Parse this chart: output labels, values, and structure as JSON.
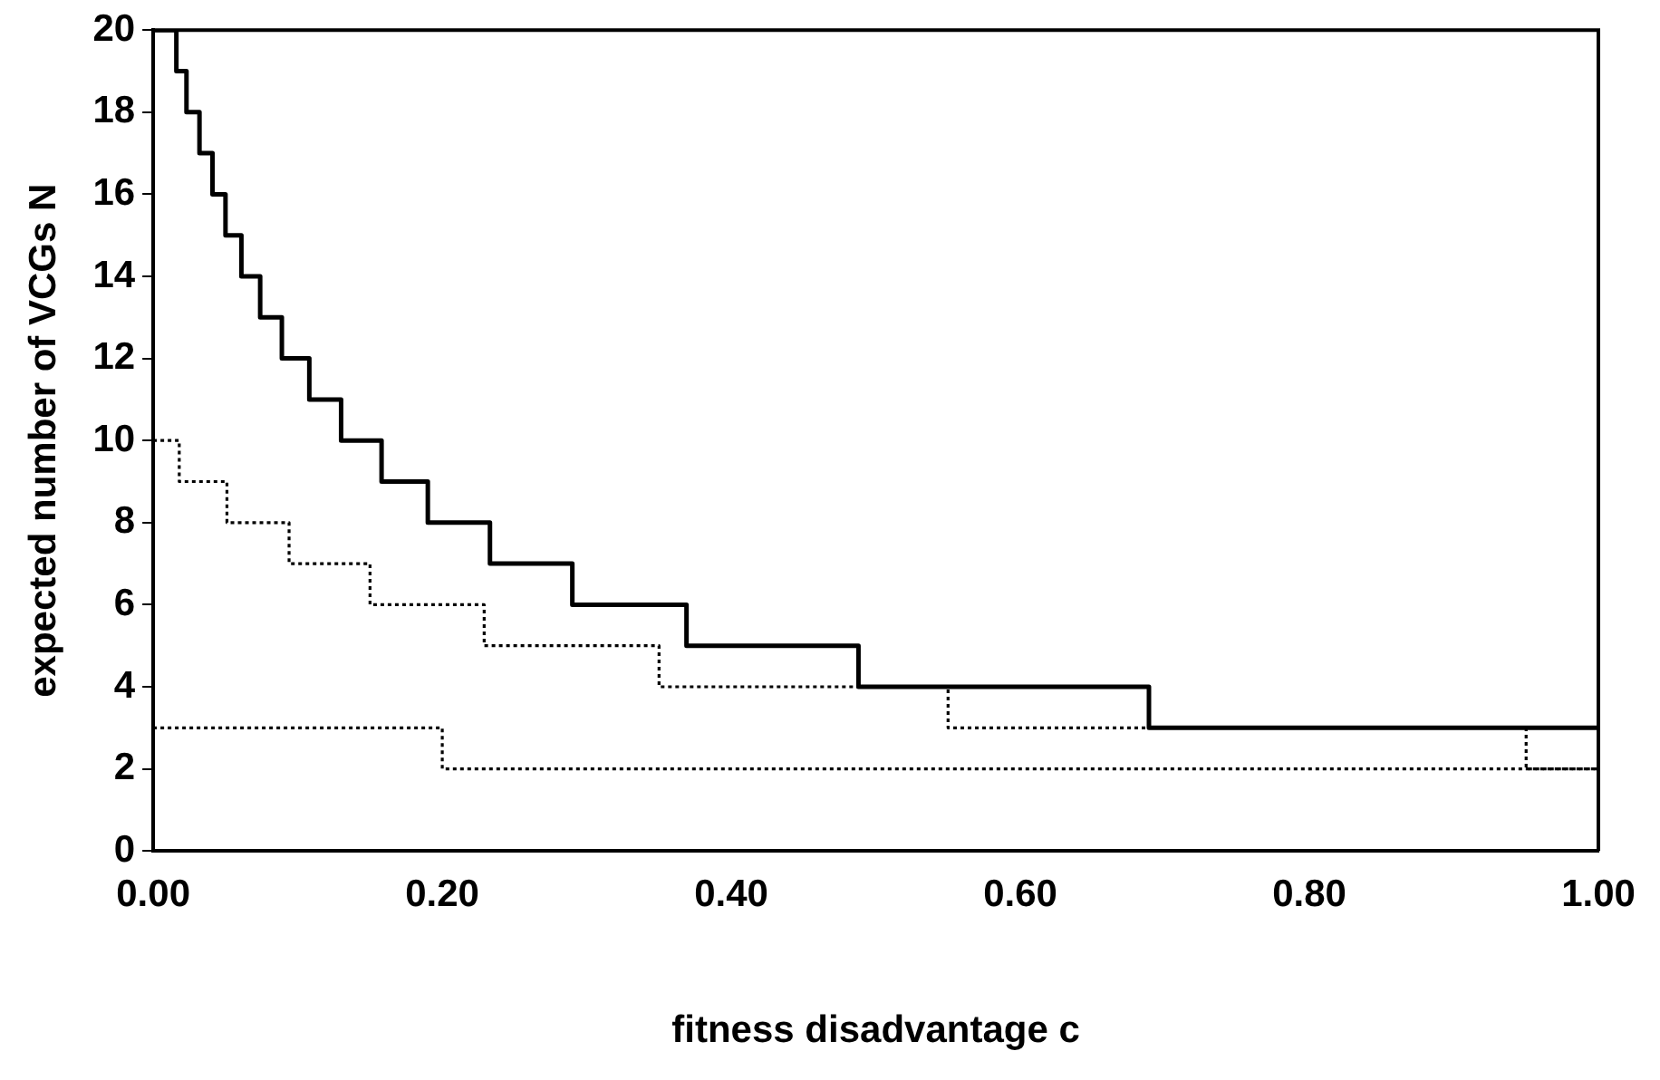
{
  "chart_data": {
    "type": "step",
    "xlabel": "fitness disadvantage c",
    "ylabel": "expected number of VCGs N",
    "xlim": [
      0,
      1
    ],
    "xticks": [
      {
        "value": 0,
        "label": "0.00"
      },
      {
        "value": 0.2,
        "label": "0.20"
      },
      {
        "value": 0.4,
        "label": "0.40"
      },
      {
        "value": 0.6,
        "label": "0.60"
      },
      {
        "value": 0.8,
        "label": "0.80"
      },
      {
        "value": 1,
        "label": "1.00"
      }
    ],
    "ylim": [
      0,
      20
    ],
    "yticks": [
      0,
      2,
      4,
      6,
      8,
      10,
      12,
      14,
      16,
      18,
      20
    ],
    "grid": false,
    "legend": false,
    "series": [
      {
        "color": "#000000",
        "line_style": "solid",
        "x": [
          0,
          0.016,
          0.023,
          0.032,
          0.041,
          0.05,
          0.061,
          0.074,
          0.089,
          0.108,
          0.13,
          0.158,
          0.19,
          0.233,
          0.29,
          0.369,
          0.488,
          0.689,
          1.0
        ],
        "values": [
          20,
          19,
          18,
          17,
          16,
          15,
          14,
          13,
          12,
          11,
          10,
          9,
          8,
          7,
          6,
          5,
          4,
          3,
          3
        ]
      },
      {
        "color": "#000000",
        "line_style": "dotted",
        "x": [
          0,
          0.018,
          0.051,
          0.094,
          0.15,
          0.229,
          0.35,
          0.55,
          0.95,
          1.0
        ],
        "values": [
          10,
          9,
          8,
          7,
          6,
          5,
          4,
          3,
          2,
          2
        ]
      },
      {
        "color": "#000000",
        "line_style": "dotted",
        "x": [
          0,
          0.2,
          1.0
        ],
        "values": [
          3,
          2,
          2
        ]
      }
    ]
  }
}
